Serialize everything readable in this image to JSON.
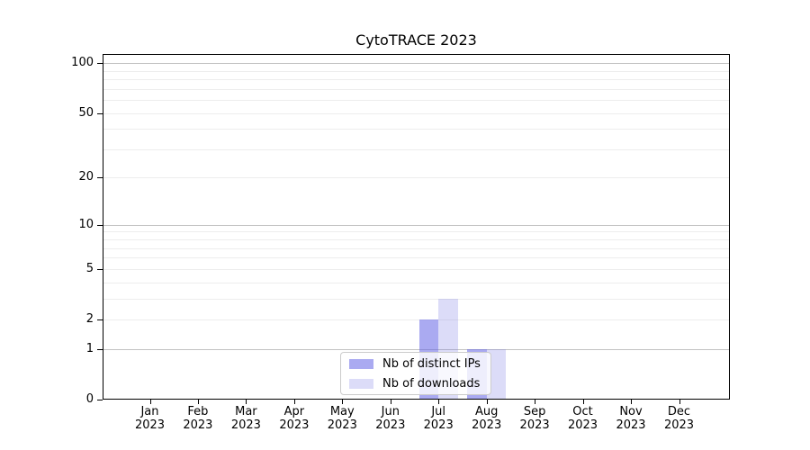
{
  "chart_data": {
    "type": "bar",
    "title": "CytoTRACE 2023",
    "categories": [
      {
        "month": "Jan",
        "year": "2023"
      },
      {
        "month": "Feb",
        "year": "2023"
      },
      {
        "month": "Mar",
        "year": "2023"
      },
      {
        "month": "Apr",
        "year": "2023"
      },
      {
        "month": "May",
        "year": "2023"
      },
      {
        "month": "Jun",
        "year": "2023"
      },
      {
        "month": "Jul",
        "year": "2023"
      },
      {
        "month": "Aug",
        "year": "2023"
      },
      {
        "month": "Sep",
        "year": "2023"
      },
      {
        "month": "Oct",
        "year": "2023"
      },
      {
        "month": "Nov",
        "year": "2023"
      },
      {
        "month": "Dec",
        "year": "2023"
      }
    ],
    "series": [
      {
        "name": "Nb of distinct IPs",
        "color": "#6464E68C",
        "values": [
          0,
          0,
          0,
          0,
          0,
          0,
          2,
          1,
          0,
          0,
          0,
          0
        ]
      },
      {
        "name": "Nb of downloads",
        "color": "#7373E340",
        "values": [
          0,
          0,
          0,
          0,
          0,
          0,
          3,
          1,
          0,
          0,
          0,
          0
        ]
      }
    ],
    "y_axis": {
      "scale": "log1p",
      "ticks": [
        0,
        1,
        2,
        5,
        10,
        20,
        50,
        100
      ],
      "max": 113.5,
      "major_gridlines": [
        1,
        10,
        100
      ],
      "minor_gridlines": [
        2,
        3,
        4,
        5,
        6,
        7,
        8,
        9,
        20,
        30,
        40,
        50,
        60,
        70,
        80,
        90
      ]
    },
    "xlabel": "",
    "ylabel": "",
    "grid": true,
    "legend_position": "lower center"
  },
  "colors": {
    "background": "#ffffff",
    "spine": "#000000",
    "major_grid": "#c2c2c2",
    "minor_grid": "#ededed",
    "text": "#000000",
    "legend_border": "#cccccc",
    "legend_background": "rgba(255,255,255,0.8)",
    "series_distinct_ips": "#6464E68C",
    "series_downloads": "#7373E340"
  }
}
